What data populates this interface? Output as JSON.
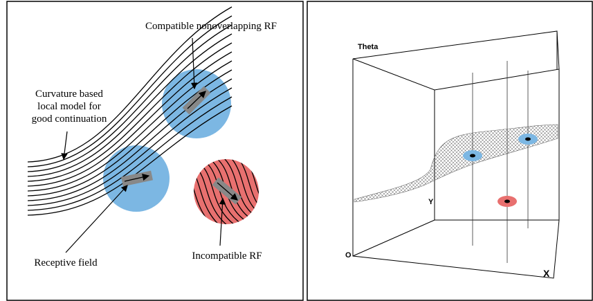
{
  "left_panel": {
    "labels": {
      "compatible": "Compatible nonoverlapping RF",
      "curvature": [
        "Curvature based",
        "local model for",
        "good continuation"
      ],
      "receptive": "Receptive field",
      "incompatible": "Incompatible RF"
    }
  },
  "right_panel": {
    "axes": {
      "theta": "Theta",
      "y": "Y",
      "origin": "O",
      "x": "X"
    }
  }
}
